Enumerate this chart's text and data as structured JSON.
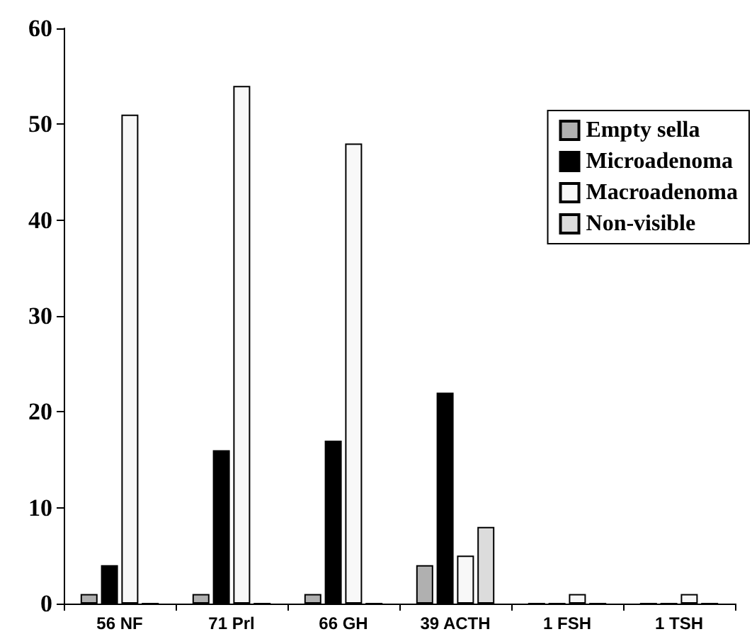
{
  "chart_data": {
    "type": "bar",
    "categories": [
      "56 NF",
      "71 Prl",
      "66 GH",
      "39 ACTH",
      "1 FSH",
      "1 TSH"
    ],
    "series": [
      {
        "name": "Empty sella",
        "color": "#b0b0b0",
        "values": [
          1,
          1,
          1,
          4,
          0,
          0
        ]
      },
      {
        "name": "Microadenoma",
        "color": "#000000",
        "values": [
          4,
          16,
          17,
          22,
          0,
          0
        ]
      },
      {
        "name": "Macroadenoma",
        "color": "#f8f8f8",
        "values": [
          51,
          54,
          48,
          5,
          1,
          1
        ]
      },
      {
        "name": "Non-visible",
        "color": "#dcdcdc",
        "values": [
          0,
          0,
          0,
          8,
          0,
          0
        ]
      }
    ],
    "ylim": [
      0,
      60
    ],
    "yticks": [
      0,
      10,
      20,
      30,
      40,
      50,
      60
    ],
    "grid": false,
    "legend": "top right"
  }
}
